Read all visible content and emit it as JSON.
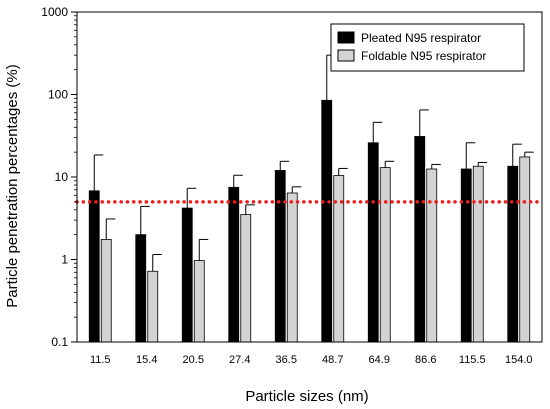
{
  "chart_data": {
    "type": "bar",
    "title": "",
    "xlabel": "Particle sizes (nm)",
    "ylabel": "Particle penetration percentages (%)",
    "yscale": "log",
    "ylim": [
      0.1,
      1000
    ],
    "yticks": [
      "0.1",
      "1",
      "10",
      "100",
      "1000"
    ],
    "grid": false,
    "legend_position": "top-right",
    "categories": [
      "11.5",
      "15.4",
      "20.5",
      "27.4",
      "36.5",
      "48.7",
      "64.9",
      "86.6",
      "115.5",
      "154.0"
    ],
    "series": [
      {
        "name": "Pleated N95 respirator",
        "color": "#000000",
        "values": [
          6.8,
          2.0,
          4.2,
          7.5,
          12,
          85,
          26,
          31,
          12.5,
          13.5
        ],
        "error_upper": [
          18.5,
          4.4,
          7.3,
          10.5,
          15.5,
          300,
          46,
          65,
          26,
          25
        ]
      },
      {
        "name": "Foldable N95 respirator",
        "color": "#d3d3d3",
        "values": [
          1.75,
          0.72,
          0.97,
          3.5,
          6.4,
          10.4,
          13,
          12.5,
          13.5,
          17.5
        ],
        "error_upper": [
          3.1,
          1.15,
          1.75,
          4.6,
          7.6,
          12.7,
          15.5,
          14.2,
          15,
          20
        ]
      }
    ],
    "reference_line": {
      "value": 5,
      "color": "#ee1c1c",
      "style": "dotted"
    }
  }
}
